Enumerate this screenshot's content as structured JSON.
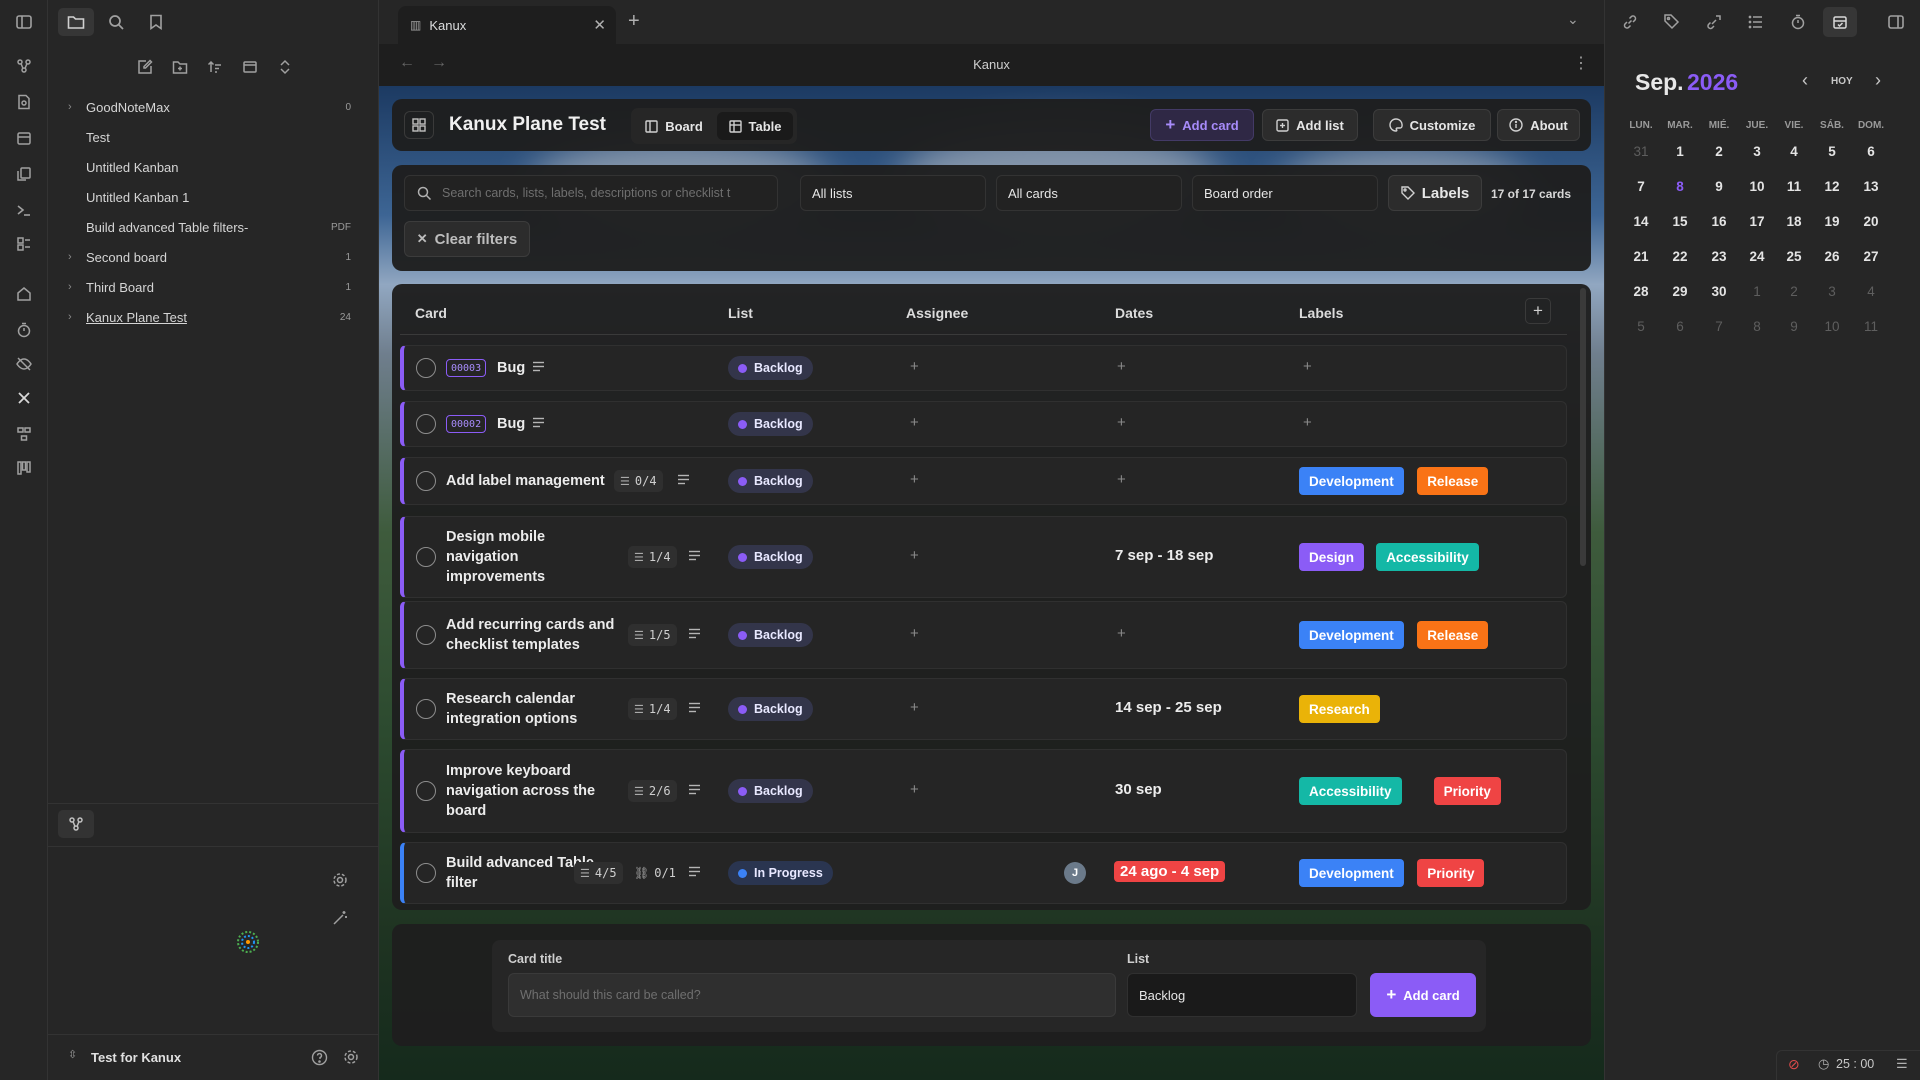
{
  "window": {
    "tab_title": "Kanux",
    "view_title": "Kanux"
  },
  "sidebar": {
    "items": [
      {
        "label": "GoodNoteMax",
        "count": "0",
        "chevron": true
      },
      {
        "label": "Test",
        "count": ""
      },
      {
        "label": "Untitled Kanban",
        "count": ""
      },
      {
        "label": "Untitled Kanban 1",
        "count": ""
      },
      {
        "label": "Build advanced Table filters-",
        "count": "PDF"
      },
      {
        "label": "Second board",
        "count": "1",
        "chevron": true
      },
      {
        "label": "Third Board",
        "count": "1",
        "chevron": true
      },
      {
        "label": "Kanux Plane Test",
        "count": "24",
        "chevron": true
      }
    ],
    "vault_name": "Test for Kanux"
  },
  "board": {
    "title": "Kanux Plane Test",
    "view_board": "Board",
    "view_table": "Table",
    "actions": {
      "add_card": "Add card",
      "add_list": "Add list",
      "customize": "Customize",
      "about": "About"
    },
    "filters": {
      "search_placeholder": "Search cards, lists, labels, descriptions or checklist t",
      "list_filter": "All lists",
      "card_filter": "All cards",
      "order": "Board order",
      "labels_button": "Labels",
      "count": "17 of 17 cards",
      "clear": "Clear filters"
    },
    "columns": {
      "card": "Card",
      "list": "List",
      "assignee": "Assignee",
      "dates": "Dates",
      "labels": "Labels"
    },
    "rows": [
      {
        "id": "00003",
        "title": "Bug",
        "list": "Backlog"
      },
      {
        "id": "00002",
        "title": "Bug",
        "list": "Backlog"
      },
      {
        "title": "Add label management",
        "checklist": "0/4",
        "list": "Backlog",
        "labels": [
          "Development",
          "Release"
        ]
      },
      {
        "title": "Design mobile navigation improvements",
        "checklist": "1/4",
        "list": "Backlog",
        "dates": "7 sep - 18 sep",
        "labels": [
          "Design",
          "Accessibility"
        ]
      },
      {
        "title": "Add recurring cards and checklist templates",
        "checklist": "1/5",
        "list": "Backlog",
        "labels": [
          "Development",
          "Release"
        ]
      },
      {
        "title": "Research calendar integration options",
        "checklist": "1/4",
        "list": "Backlog",
        "dates": "14 sep - 25 sep",
        "labels": [
          "Research"
        ]
      },
      {
        "title": "Improve keyboard navigation across the board",
        "checklist": "2/6",
        "list": "Backlog",
        "dates": "30 sep",
        "labels": [
          "Accessibility",
          "Priority"
        ]
      },
      {
        "title": "Build advanced Table filter",
        "checklist": "4/5",
        "links": "0/1",
        "list": "In Progress",
        "assignee": "J",
        "dates": "24 ago - 4 sep",
        "labels": [
          "Development",
          "Priority"
        ]
      }
    ],
    "new_card": {
      "title_label": "Card title",
      "title_placeholder": "What should this card be called?",
      "list_label": "List",
      "list_value": "Backlog",
      "submit": "Add card"
    },
    "label_colors": {
      "Development": "#3b82f6",
      "Release": "#f97316",
      "Design": "#8b5cf6",
      "Accessibility": "#14b8a6",
      "Research": "#eab308",
      "Priority": "#ef4444"
    }
  },
  "calendar": {
    "month": "Sep.",
    "year": "2026",
    "today_button": "HOY",
    "weekdays": [
      "LUN.",
      "MAR.",
      "MIÉ.",
      "JUE.",
      "VIE.",
      "SÁB.",
      "DOM."
    ],
    "weeks": [
      [
        "31",
        "1",
        "2",
        "3",
        "4",
        "5",
        "6"
      ],
      [
        "7",
        "8",
        "9",
        "10",
        "11",
        "12",
        "13"
      ],
      [
        "14",
        "15",
        "16",
        "17",
        "18",
        "19",
        "20"
      ],
      [
        "21",
        "22",
        "23",
        "24",
        "25",
        "26",
        "27"
      ],
      [
        "28",
        "29",
        "30",
        "1",
        "2",
        "3",
        "4"
      ],
      [
        "5",
        "6",
        "7",
        "8",
        "9",
        "10",
        "11"
      ]
    ],
    "today": "8"
  },
  "status": {
    "timer": "25 : 00"
  }
}
